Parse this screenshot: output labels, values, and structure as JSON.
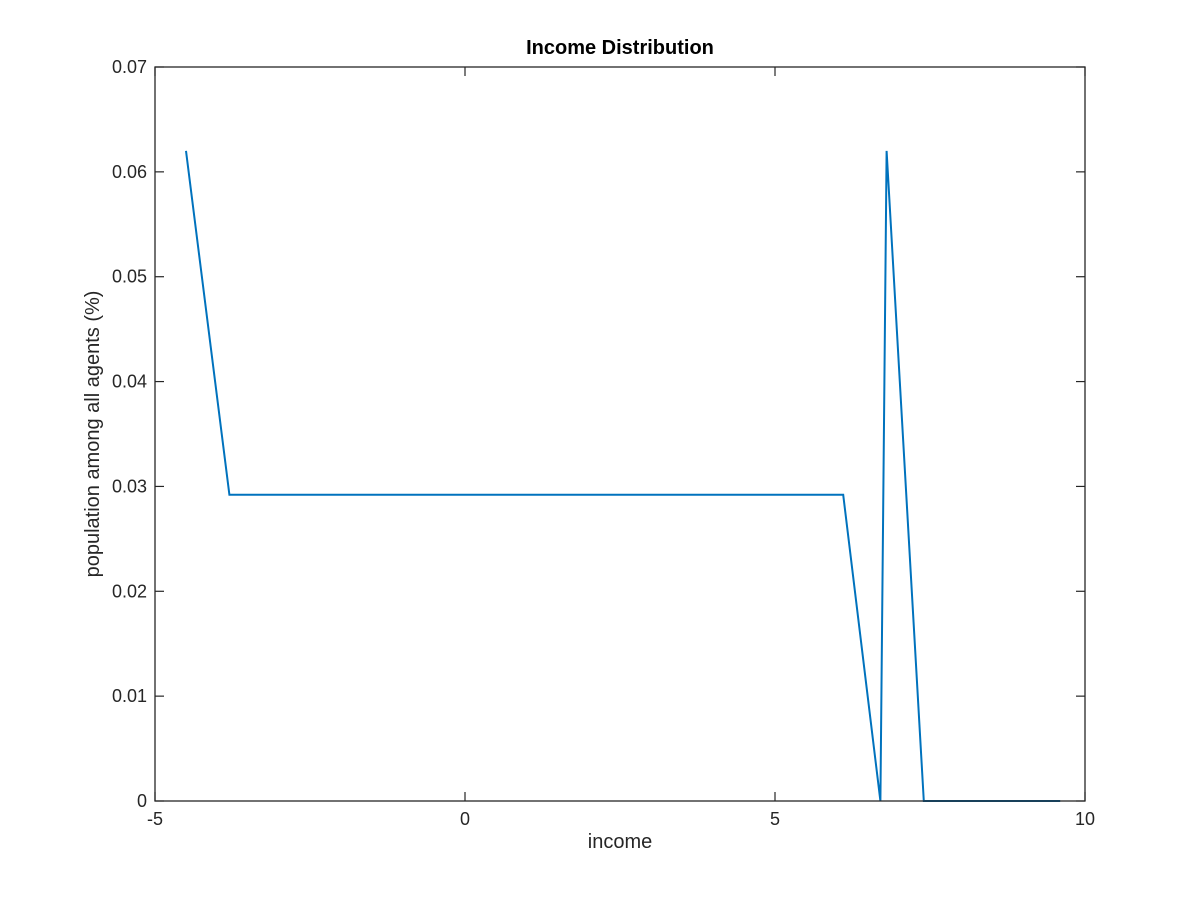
{
  "chart_data": {
    "type": "line",
    "title": "Income Distribution",
    "xlabel": "income",
    "ylabel": "population among all agents (%)",
    "xlim": [
      -5,
      10
    ],
    "ylim": [
      0,
      0.07
    ],
    "xticks": [
      -5,
      0,
      5,
      10
    ],
    "xtick_labels": [
      "-5",
      "0",
      "5",
      "10"
    ],
    "yticks": [
      0,
      0.01,
      0.02,
      0.03,
      0.04,
      0.05,
      0.06,
      0.07
    ],
    "ytick_labels": [
      "0",
      "0.01",
      "0.02",
      "0.03",
      "0.04",
      "0.05",
      "0.06",
      "0.07"
    ],
    "grid": false,
    "line_color": "#0072BD",
    "axis_color": "#262626",
    "series": [
      {
        "x": [
          -4.5,
          -3.8,
          6.1,
          6.7,
          6.8,
          7.4,
          9.6
        ],
        "y": [
          0.062,
          0.0292,
          0.0292,
          0,
          0.062,
          0,
          0
        ]
      }
    ]
  }
}
